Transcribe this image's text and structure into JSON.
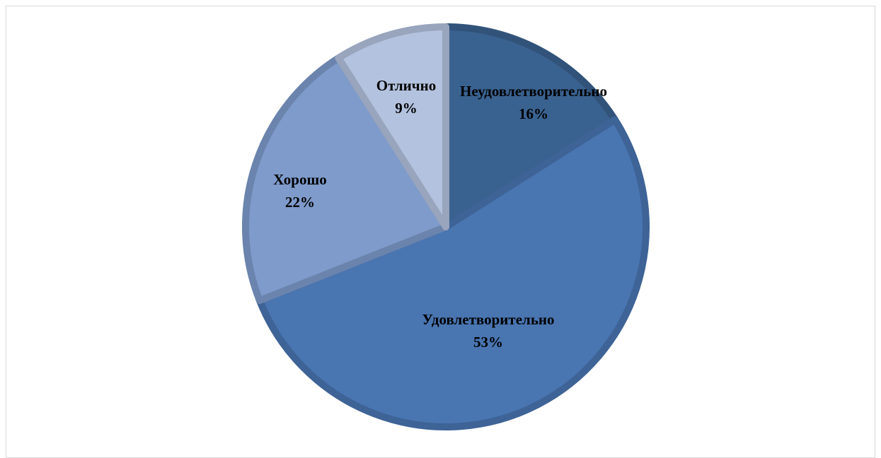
{
  "chart_data": {
    "type": "pie",
    "title": "",
    "start_angle_deg": 0,
    "direction": "clockwise",
    "slices": [
      {
        "label": "Неудовлетворительно",
        "value": 16,
        "display": "16%",
        "color": "#3a6290"
      },
      {
        "label": "Удовлетворительно",
        "value": 53,
        "display": "53%",
        "color": "#4975b1"
      },
      {
        "label": "Хорошо",
        "value": 22,
        "display": "22%",
        "color": "#7e9bcb"
      },
      {
        "label": "Отлично",
        "value": 9,
        "display": "9%",
        "color": "#b3c2de"
      }
    ]
  }
}
